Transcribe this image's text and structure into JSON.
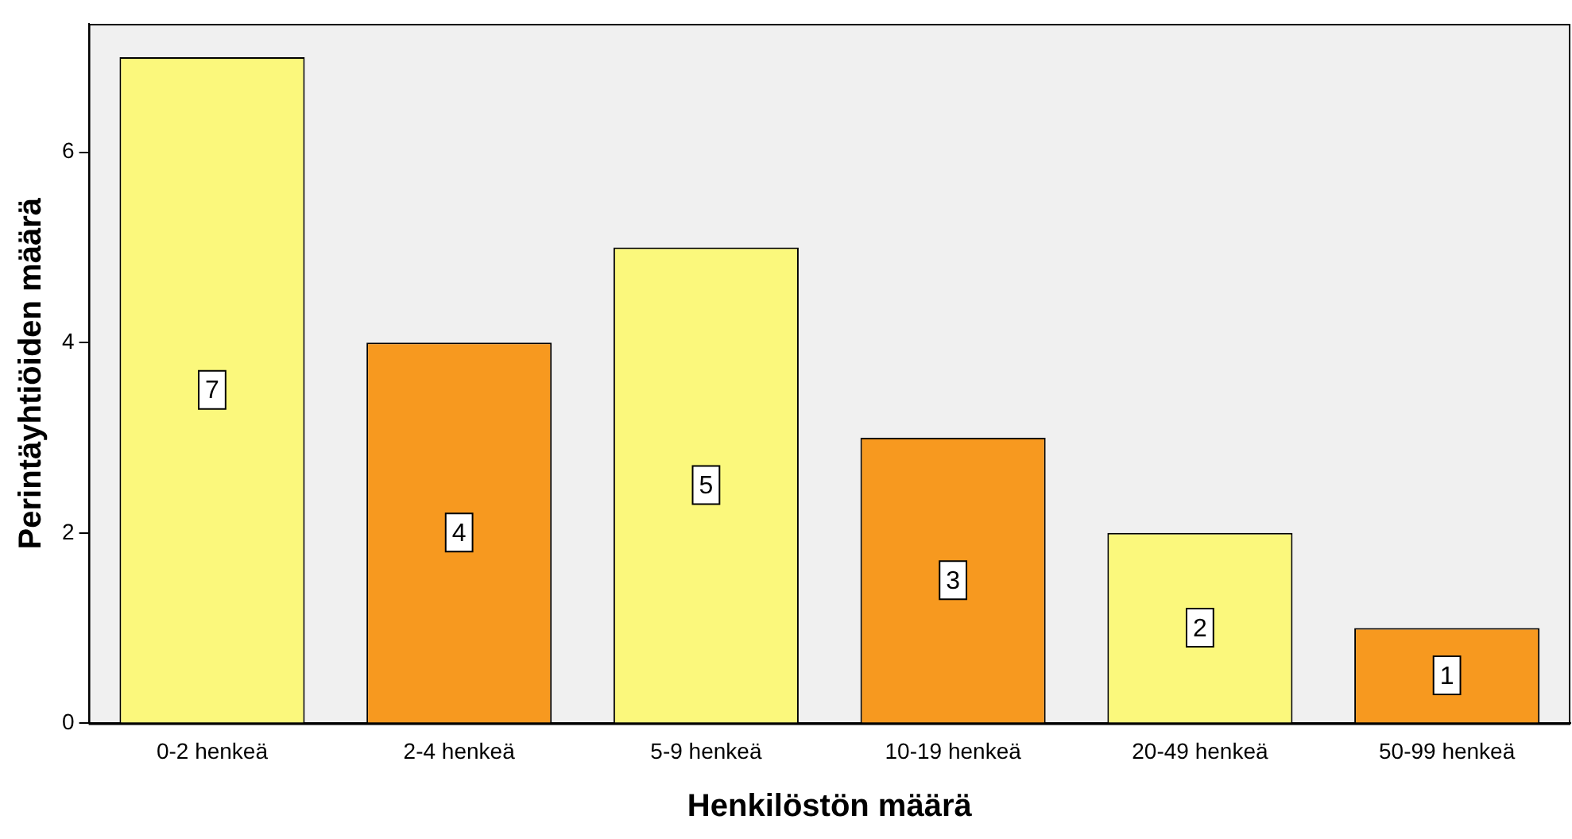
{
  "chart_data": {
    "type": "bar",
    "xlabel": "Henkilöstön määrä",
    "ylabel": "Perintäyhtiöiden määrä",
    "categories": [
      "0-2 henkeä",
      "2-4 henkeä",
      "5-9 henkeä",
      "10-19 henkeä",
      "20-49 henkeä",
      "50-99 henkeä"
    ],
    "values": [
      7,
      4,
      5,
      3,
      2,
      1
    ],
    "colors": [
      "#fbf87c",
      "#f7991f",
      "#fbf87c",
      "#f7991f",
      "#fbf87c",
      "#f7991f"
    ],
    "ylim": [
      0,
      7.35
    ],
    "yticks": [
      0,
      2,
      4,
      6
    ],
    "grid": false,
    "legend": false,
    "data_labels": true
  }
}
